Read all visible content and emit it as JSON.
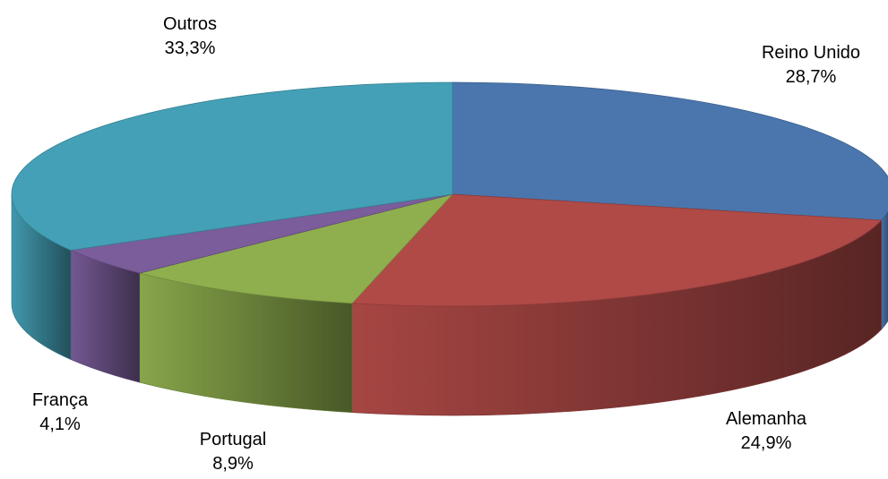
{
  "chart_data": {
    "type": "pie",
    "style": "3d",
    "title": "",
    "slices": [
      {
        "label": "Reino Unido",
        "value": 28.7,
        "display": "28,7%",
        "color": "#4A76AD"
      },
      {
        "label": "Alemanha",
        "value": 24.9,
        "display": "24,9%",
        "color": "#B04A47"
      },
      {
        "label": "Portugal",
        "value": 8.9,
        "display": "8,9%",
        "color": "#8FAF4E"
      },
      {
        "label": "França",
        "value": 4.1,
        "display": "4,1%",
        "color": "#7A5D9A"
      },
      {
        "label": "Outros",
        "value": 33.3,
        "display": "33,3%",
        "color": "#44A0B6"
      }
    ],
    "legend": "none"
  }
}
